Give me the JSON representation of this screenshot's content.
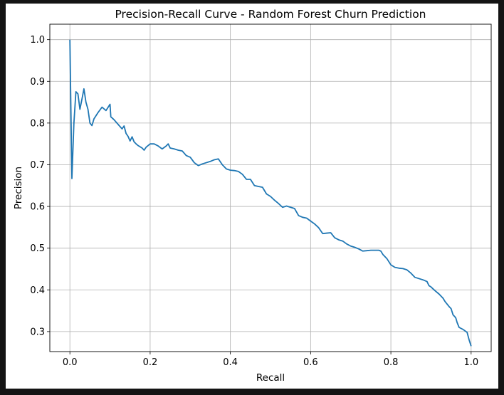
{
  "chart_data": {
    "type": "line",
    "title": "Precision-Recall Curve - Random Forest Churn Prediction",
    "xlabel": "Recall",
    "ylabel": "Precision",
    "xlim": [
      -0.05,
      1.05
    ],
    "ylim": [
      0.252,
      1.037
    ],
    "xticks": [
      "0.0",
      "0.2",
      "0.4",
      "0.6",
      "0.8",
      "1.0"
    ],
    "yticks": [
      "0.3",
      "0.4",
      "0.5",
      "0.6",
      "0.7",
      "0.8",
      "0.9",
      "1.0"
    ],
    "grid": true,
    "line_color": "#1f77b4",
    "series": [
      {
        "x": [
          0.0,
          0.005,
          0.01,
          0.015,
          0.02,
          0.025,
          0.03,
          0.035,
          0.04,
          0.045,
          0.05,
          0.055,
          0.06,
          0.07,
          0.08,
          0.09,
          0.1,
          0.102,
          0.11,
          0.12,
          0.13,
          0.135,
          0.14,
          0.145,
          0.15,
          0.155,
          0.16,
          0.165,
          0.17,
          0.18,
          0.185,
          0.19,
          0.2,
          0.21,
          0.22,
          0.23,
          0.24,
          0.245,
          0.25,
          0.26,
          0.27,
          0.28,
          0.29,
          0.3,
          0.31,
          0.32,
          0.33,
          0.34,
          0.35,
          0.36,
          0.37,
          0.38,
          0.39,
          0.4,
          0.41,
          0.42,
          0.43,
          0.44,
          0.45,
          0.46,
          0.47,
          0.48,
          0.49,
          0.5,
          0.51,
          0.52,
          0.53,
          0.54,
          0.55,
          0.56,
          0.57,
          0.58,
          0.59,
          0.6,
          0.61,
          0.62,
          0.63,
          0.64,
          0.65,
          0.66,
          0.67,
          0.68,
          0.69,
          0.7,
          0.71,
          0.72,
          0.73,
          0.74,
          0.75,
          0.76,
          0.77,
          0.775,
          0.78,
          0.79,
          0.8,
          0.81,
          0.82,
          0.83,
          0.84,
          0.85,
          0.86,
          0.87,
          0.88,
          0.89,
          0.895,
          0.9,
          0.91,
          0.92,
          0.93,
          0.935,
          0.94,
          0.945,
          0.95,
          0.955,
          0.96,
          0.962,
          0.965,
          0.97,
          0.98,
          0.99,
          0.995,
          1.0
        ],
        "y": [
          1.0,
          0.667,
          0.8,
          0.875,
          0.87,
          0.833,
          0.857,
          0.882,
          0.85,
          0.833,
          0.8,
          0.794,
          0.81,
          0.825,
          0.838,
          0.83,
          0.845,
          0.815,
          0.808,
          0.797,
          0.786,
          0.793,
          0.775,
          0.768,
          0.757,
          0.767,
          0.755,
          0.75,
          0.746,
          0.74,
          0.735,
          0.742,
          0.75,
          0.75,
          0.745,
          0.738,
          0.745,
          0.75,
          0.74,
          0.738,
          0.735,
          0.733,
          0.722,
          0.718,
          0.705,
          0.698,
          0.702,
          0.705,
          0.708,
          0.712,
          0.714,
          0.7,
          0.69,
          0.687,
          0.686,
          0.684,
          0.677,
          0.665,
          0.665,
          0.65,
          0.648,
          0.646,
          0.63,
          0.624,
          0.615,
          0.607,
          0.598,
          0.601,
          0.598,
          0.595,
          0.578,
          0.574,
          0.572,
          0.565,
          0.558,
          0.549,
          0.535,
          0.536,
          0.537,
          0.525,
          0.52,
          0.517,
          0.51,
          0.505,
          0.502,
          0.498,
          0.493,
          0.494,
          0.495,
          0.495,
          0.495,
          0.493,
          0.485,
          0.475,
          0.46,
          0.454,
          0.452,
          0.451,
          0.448,
          0.44,
          0.43,
          0.427,
          0.424,
          0.42,
          0.41,
          0.407,
          0.398,
          0.39,
          0.38,
          0.372,
          0.366,
          0.36,
          0.355,
          0.34,
          0.335,
          0.332,
          0.322,
          0.31,
          0.305,
          0.298,
          0.28,
          0.265
        ]
      }
    ]
  }
}
